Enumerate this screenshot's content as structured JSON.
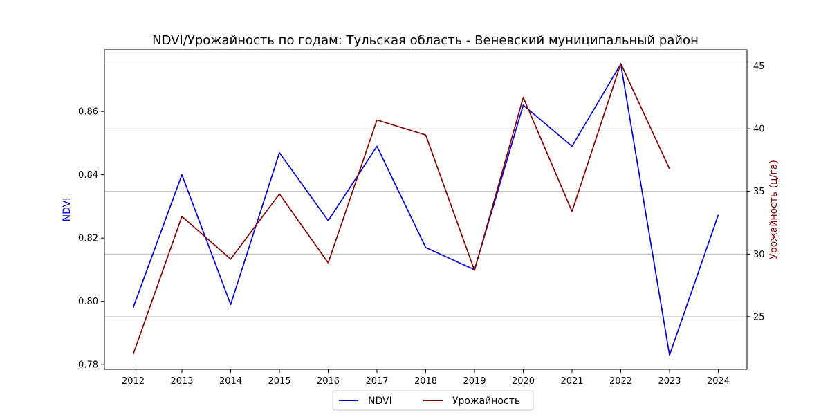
{
  "chart_data": {
    "type": "line",
    "title": "NDVI/Урожайность по годам: Тульская область - Веневский муниципальный район",
    "xlabel": "",
    "ylabel_left": "NDVI",
    "ylabel_right": "Урожайность (ц/га)",
    "x": [
      "2012",
      "2013",
      "2014",
      "2015",
      "2016",
      "2017",
      "2018",
      "2019",
      "2020",
      "2021",
      "2022",
      "2023",
      "2024"
    ],
    "ylim_left": [
      0.7785,
      0.8795
    ],
    "ylim_right": [
      20.8,
      46.3
    ],
    "yticks_left": [
      "0.78",
      "0.80",
      "0.82",
      "0.84",
      "0.86"
    ],
    "yticks_right": [
      "25",
      "30",
      "35",
      "40",
      "45"
    ],
    "grid": "horizontal lines at right-axis ticks",
    "legend_position": "bottom-center",
    "series": [
      {
        "name": "NDVI",
        "axis": "left",
        "color": "#0000cc",
        "values": [
          0.798,
          0.84,
          0.799,
          0.847,
          0.8255,
          0.849,
          0.817,
          0.81,
          0.862,
          0.849,
          0.875,
          0.783,
          0.8273
        ]
      },
      {
        "name": "Урожайность",
        "axis": "right",
        "color": "#800000",
        "values": [
          22.0,
          33.0,
          29.6,
          34.8,
          29.3,
          40.7,
          39.5,
          28.7,
          42.5,
          33.4,
          45.2,
          36.8,
          null
        ]
      }
    ],
    "axis_label_colors": {
      "left": "#0000cc",
      "right": "#800000"
    }
  }
}
